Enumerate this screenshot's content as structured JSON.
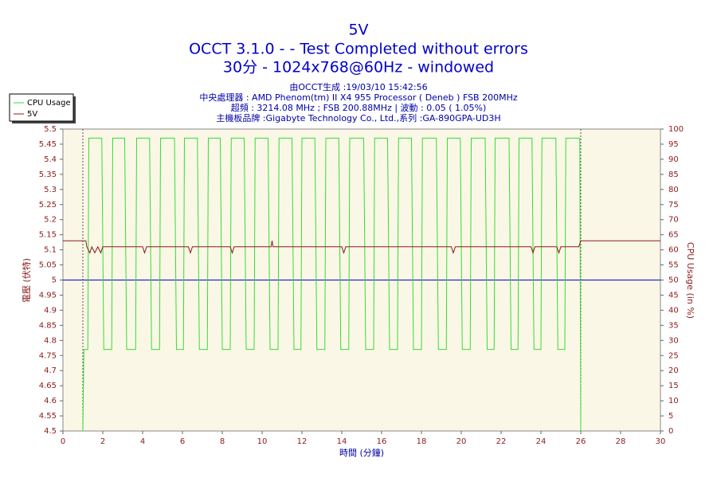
{
  "chart_data": {
    "type": "line",
    "title": "5V",
    "subtitle": [
      "OCCT 3.1.0 -  - Test Completed without errors",
      "30分 - 1024x768@60Hz - windowed"
    ],
    "info": [
      "由OCCT生成 :19/03/10 15:42:56",
      "中央處理器 : AMD Phenom(tm) II X4 955 Processor ( Deneb ) FSB 200MHz",
      "超頻 : 3214.08 MHz ; FSB 200.88MHz | 波動 : 0.05 ( 1.05%)",
      "主機板品牌 :Gigabyte Technology Co., Ltd.,系列 :GA-890GPA-UD3H"
    ],
    "xlabel": "時間 (分鐘)",
    "ylabel": "電壓 (伏特)",
    "y2label": "CPU Usage (in %)",
    "xlim": [
      0,
      30
    ],
    "xticks": [
      0,
      2,
      4,
      6,
      8,
      10,
      12,
      14,
      16,
      18,
      20,
      22,
      24,
      26,
      28,
      30
    ],
    "ylim": [
      4.5,
      5.5
    ],
    "yticks": [
      4.5,
      4.55,
      4.6,
      4.65,
      4.7,
      4.75,
      4.8,
      4.85,
      4.9,
      4.95,
      5,
      5.05,
      5.1,
      5.15,
      5.2,
      5.25,
      5.3,
      5.35,
      5.4,
      5.45,
      5.5
    ],
    "y2lim": [
      0,
      100
    ],
    "y2ticks": [
      0,
      5,
      10,
      15,
      20,
      25,
      30,
      35,
      40,
      45,
      50,
      55,
      60,
      65,
      70,
      75,
      80,
      85,
      90,
      95,
      100
    ],
    "grid": false,
    "legend": "top-left",
    "hline": {
      "value": 5,
      "color": "#0000cc"
    },
    "vlines": [
      1,
      26
    ],
    "series": [
      {
        "name": "CPU Usage",
        "color": "#33dd33",
        "axis": "y2",
        "x": [
          1.0,
          1.05,
          1.25,
          1.3,
          1.95,
          2.05,
          2.45,
          2.5,
          3.1,
          3.2,
          3.65,
          3.7,
          4.35,
          4.45,
          4.85,
          4.9,
          5.6,
          5.7,
          6.05,
          6.1,
          6.75,
          6.85,
          7.25,
          7.3,
          7.9,
          8.0,
          8.4,
          8.45,
          9.1,
          9.2,
          9.6,
          9.65,
          10.3,
          10.4,
          10.8,
          10.85,
          11.5,
          11.6,
          11.95,
          12.0,
          12.65,
          12.75,
          13.15,
          13.2,
          13.85,
          13.95,
          14.35,
          14.4,
          15.1,
          15.2,
          15.6,
          15.65,
          16.3,
          16.4,
          16.8,
          16.85,
          17.5,
          17.6,
          18.0,
          18.05,
          18.75,
          18.85,
          19.25,
          19.3,
          19.95,
          20.05,
          20.45,
          20.5,
          21.2,
          21.3,
          21.65,
          21.7,
          22.4,
          22.5,
          22.85,
          22.9,
          23.55,
          23.65,
          24.0,
          24.05,
          24.75,
          24.85,
          25.2,
          25.25,
          25.95,
          26.0
        ],
        "values": [
          0,
          27,
          27,
          97,
          97,
          27,
          27,
          97,
          97,
          27,
          27,
          97,
          97,
          27,
          27,
          97,
          97,
          27,
          27,
          97,
          97,
          27,
          27,
          97,
          97,
          27,
          27,
          97,
          97,
          27,
          27,
          97,
          97,
          27,
          27,
          97,
          97,
          27,
          27,
          97,
          97,
          27,
          27,
          97,
          97,
          27,
          27,
          97,
          97,
          27,
          27,
          97,
          97,
          27,
          27,
          97,
          97,
          27,
          27,
          97,
          97,
          27,
          27,
          97,
          97,
          27,
          27,
          97,
          97,
          27,
          27,
          97,
          97,
          27,
          27,
          97,
          97,
          27,
          27,
          97,
          97,
          27,
          27,
          97,
          97,
          0
        ]
      },
      {
        "name": "5V",
        "color": "#8b1a1a",
        "axis": "y",
        "x": [
          0,
          1.15,
          1.2,
          1.35,
          1.45,
          1.6,
          1.75,
          1.9,
          2.0,
          2.1,
          4.0,
          4.1,
          4.2,
          6.3,
          6.4,
          6.5,
          8.4,
          8.5,
          8.6,
          10.45,
          10.5,
          10.55,
          14.0,
          14.1,
          14.2,
          19.5,
          19.6,
          19.7,
          23.5,
          23.6,
          23.7,
          24.8,
          24.9,
          25.0,
          25.9,
          26.0,
          30
        ],
        "values": [
          5.13,
          5.13,
          5.11,
          5.09,
          5.11,
          5.09,
          5.11,
          5.09,
          5.11,
          5.11,
          5.11,
          5.09,
          5.11,
          5.11,
          5.09,
          5.11,
          5.11,
          5.09,
          5.11,
          5.11,
          5.13,
          5.11,
          5.11,
          5.09,
          5.11,
          5.11,
          5.09,
          5.11,
          5.11,
          5.09,
          5.11,
          5.11,
          5.09,
          5.11,
          5.11,
          5.13,
          5.13
        ]
      }
    ]
  }
}
